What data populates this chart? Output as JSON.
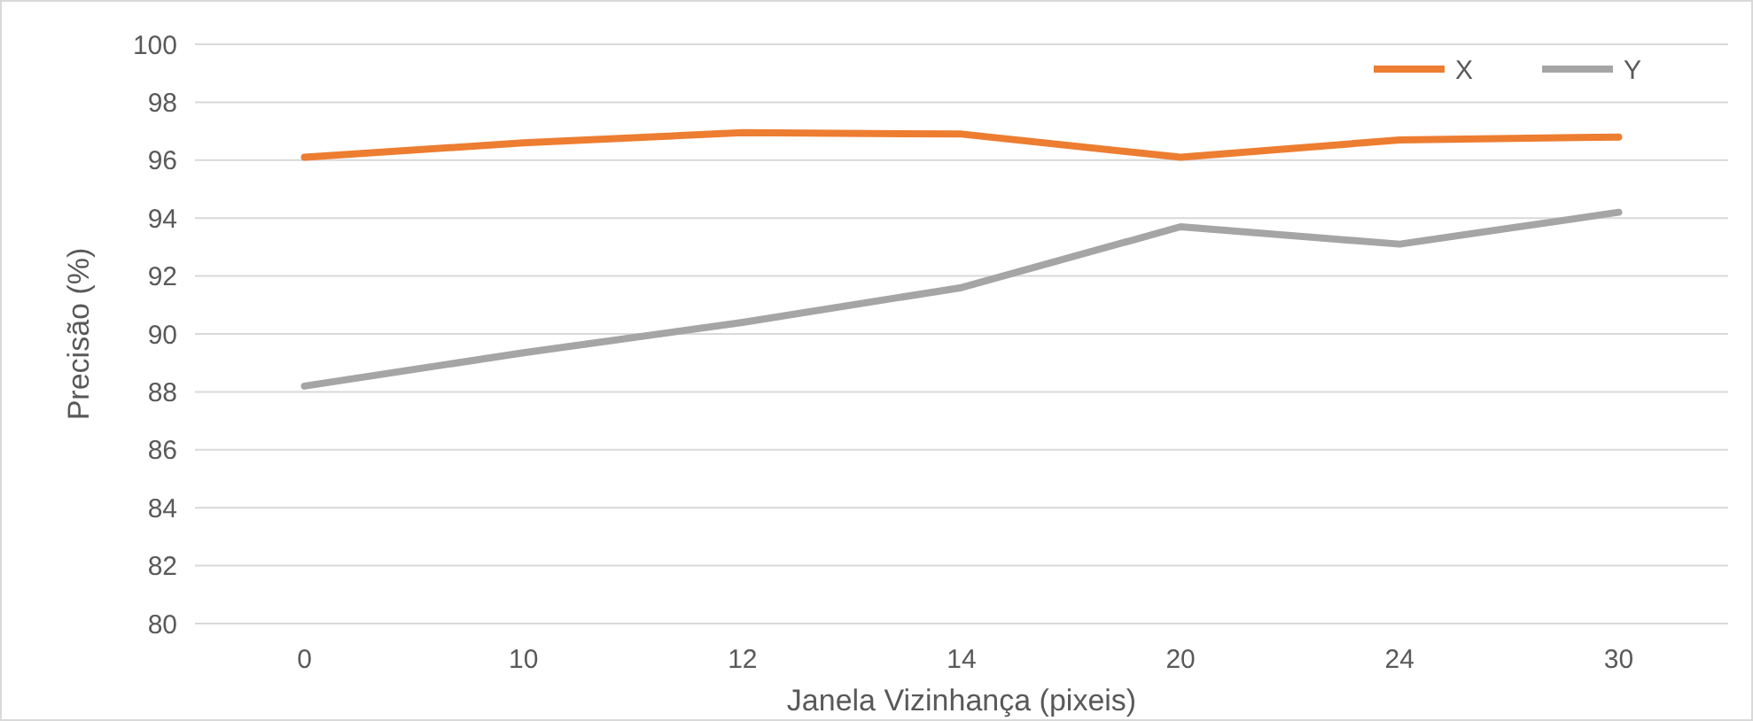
{
  "chart_data": {
    "type": "line",
    "xlabel": "Janela Vizinhança (pixeis)",
    "ylabel": "Precisão (%)",
    "categories": [
      "0",
      "10",
      "12",
      "14",
      "20",
      "24",
      "30"
    ],
    "series": [
      {
        "name": "X",
        "color": "#ed7d31",
        "values": [
          96.1,
          96.6,
          96.95,
          96.9,
          96.1,
          96.7,
          96.8
        ]
      },
      {
        "name": "Y",
        "color": "#a5a5a5",
        "values": [
          88.2,
          89.35,
          90.4,
          91.6,
          93.7,
          93.1,
          94.2
        ]
      }
    ],
    "ylim": [
      80,
      100
    ],
    "yticks": [
      80,
      82,
      84,
      86,
      88,
      90,
      92,
      94,
      96,
      98,
      100
    ],
    "grid": "y",
    "legend": "top right",
    "marker": "none",
    "line_style": "solid"
  }
}
